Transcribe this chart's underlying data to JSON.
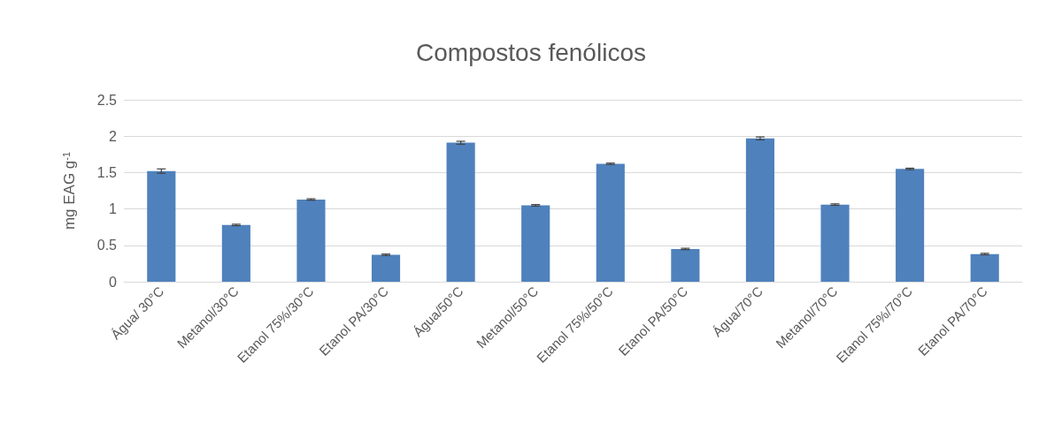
{
  "chart_data": {
    "type": "bar",
    "title": "Compostos fenólicos",
    "ylabel": "mg EAG g$^{-1}$",
    "categories": [
      "Água/ 30°C",
      "Metanol/30°C",
      "Etanol 75%/30°C",
      "Etanol PA/30°C",
      "Água/50°C",
      "Metanol/50°C",
      "Etanol 75%/50°C",
      "Etanol PA/50°C",
      "Água/70°C",
      "Metanol/70°C",
      "Etanol 75%/70°C",
      "Etanol PA/70°C"
    ],
    "values": [
      1.52,
      0.78,
      1.13,
      0.37,
      1.91,
      1.05,
      1.62,
      0.45,
      1.97,
      1.06,
      1.55,
      0.38
    ],
    "errors": [
      0.03,
      0.01,
      0.01,
      0.01,
      0.02,
      0.01,
      0.01,
      0.01,
      0.02,
      0.01,
      0.01,
      0.01
    ],
    "color": "#4f81bd",
    "ylim": [
      0,
      2.5
    ],
    "yticks": [
      0,
      0.5,
      1,
      1.5,
      2,
      2.5
    ],
    "grid": "y"
  }
}
